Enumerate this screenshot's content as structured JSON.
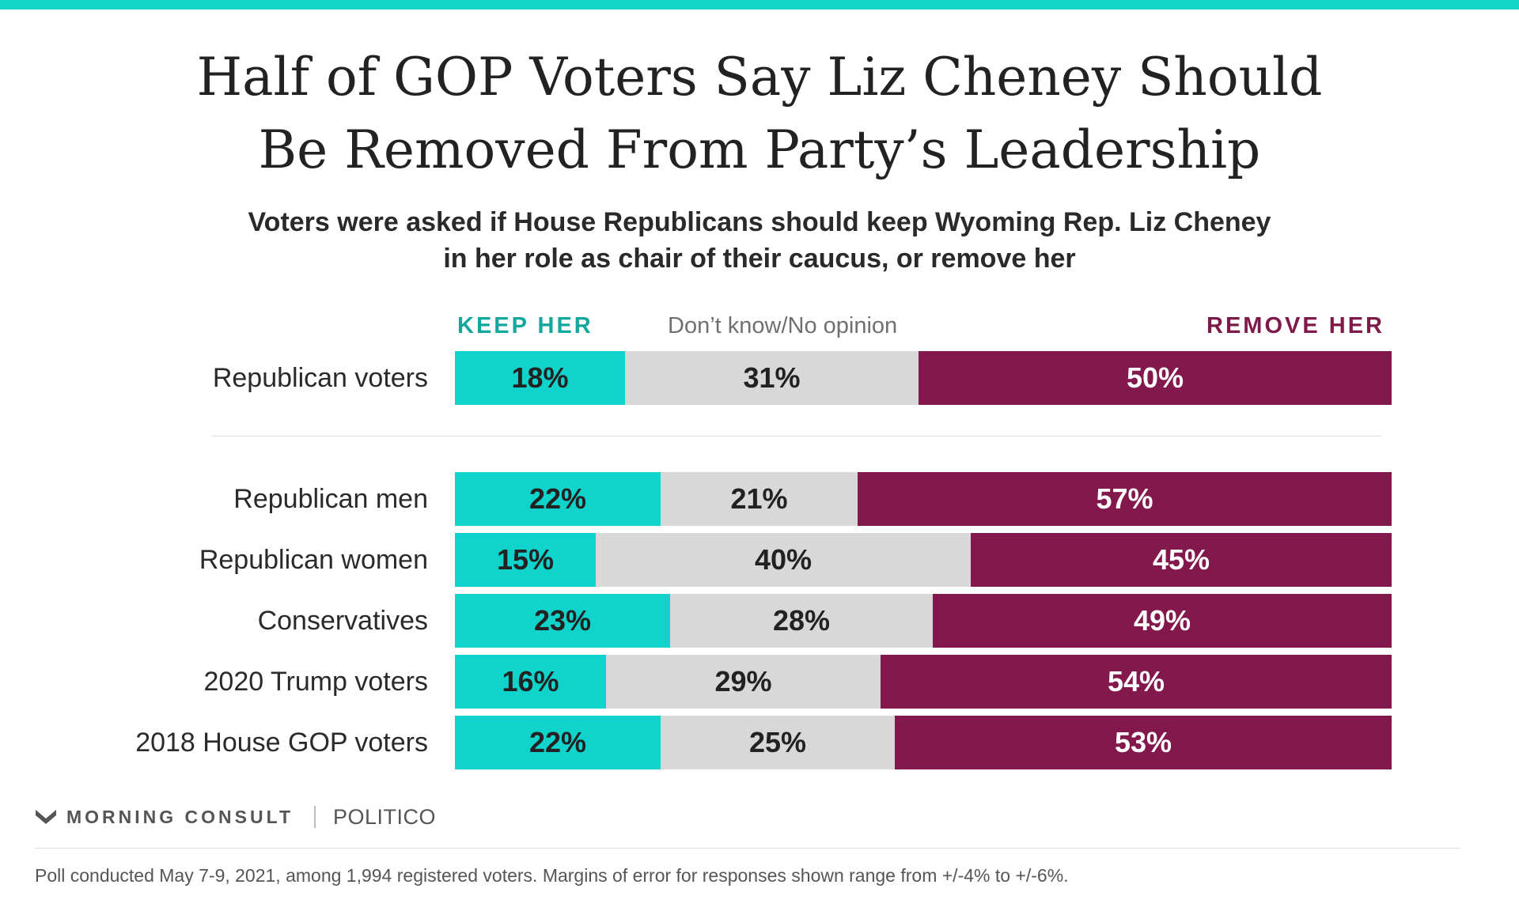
{
  "colors": {
    "keep": "#10d4cc",
    "dont_know": "#d8d8d8",
    "remove": "#82184b",
    "top_bar": "#16d6cc",
    "keep_label": "#13a89e",
    "remove_label": "#7e1a4a"
  },
  "title_lines": [
    "Half of GOP Voters Say Liz Cheney Should",
    "Be Removed From Party’s Leadership"
  ],
  "subtitle_lines": [
    "Voters were asked if House Republicans should keep Wyoming Rep. Liz Cheney",
    "in her role as chair of their caucus, or remove her"
  ],
  "legend": {
    "keep": "KEEP HER",
    "dont_know": "Don’t know/No opinion",
    "remove": "REMOVE HER"
  },
  "branding": {
    "morning_consult": "MORNING CONSULT",
    "politico": "POLITICO",
    "morning_consult_icon": "morning-consult-m-logo-icon"
  },
  "footnote": "Poll conducted May 7-9, 2021, among 1,994 registered voters. Margins of error for responses shown range from +/-4% to +/-6%.",
  "chart_data": {
    "type": "bar",
    "orientation": "horizontal",
    "stacked": true,
    "categories": [
      "Republican voters",
      "Republican men",
      "Republican women",
      "Conservatives",
      "2020 Trump voters",
      "2018 House GOP voters"
    ],
    "series": [
      {
        "name": "KEEP HER",
        "values": [
          18,
          22,
          15,
          23,
          16,
          22
        ]
      },
      {
        "name": "Don’t know/No opinion",
        "values": [
          31,
          21,
          40,
          28,
          29,
          25
        ]
      },
      {
        "name": "REMOVE HER",
        "values": [
          50,
          57,
          45,
          49,
          54,
          53
        ]
      }
    ],
    "data_labels": [
      [
        "18%",
        "31%",
        "50%"
      ],
      [
        "22%",
        "21%",
        "57%"
      ],
      [
        "15%",
        "40%",
        "45%"
      ],
      [
        "23%",
        "28%",
        "49%"
      ],
      [
        "16%",
        "29%",
        "54%"
      ],
      [
        "22%",
        "25%",
        "53%"
      ]
    ],
    "xlim": [
      0,
      100
    ],
    "grid": false,
    "legend": "top"
  }
}
